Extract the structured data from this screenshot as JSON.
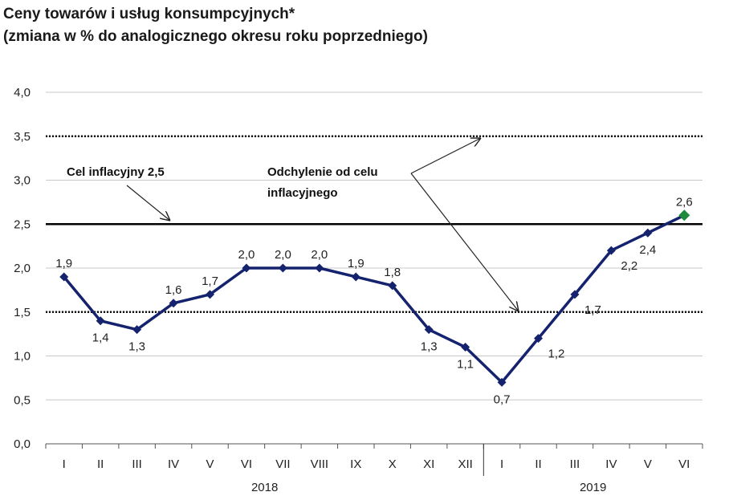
{
  "title": "Ceny towarów i usług konsumpcyjnych*",
  "subtitle": "(zmiana w % do analogicznego okresu roku poprzedniego)",
  "chart_data": {
    "type": "line",
    "x": [
      "I",
      "II",
      "III",
      "IV",
      "V",
      "VI",
      "VII",
      "VIII",
      "IX",
      "X",
      "XI",
      "XII",
      "I",
      "II",
      "III",
      "IV",
      "V",
      "VI"
    ],
    "years": [
      {
        "label": "2018",
        "months": 12
      },
      {
        "label": "2019",
        "months": 6
      }
    ],
    "series": [
      {
        "values": [
          1.9,
          1.4,
          1.3,
          1.6,
          1.7,
          2.0,
          2.0,
          2.0,
          1.9,
          1.8,
          1.3,
          1.1,
          0.7,
          1.2,
          1.7,
          2.2,
          2.4,
          2.6
        ],
        "labels": [
          "1,9",
          "1,4",
          "1,3",
          "1,6",
          "1,7",
          "2,0",
          "2,0",
          "2,0",
          "1,9",
          "1,8",
          "1,3",
          "1,1",
          "0,7",
          "1,2",
          "1,7",
          "2,2",
          "2,4",
          "2,6"
        ],
        "label_pos": [
          "above",
          "below",
          "below",
          "above",
          "above",
          "above",
          "above",
          "above",
          "above",
          "above",
          "below",
          "below",
          "below",
          "right",
          "right",
          "right",
          "below",
          "above"
        ],
        "color": "#15226e",
        "last_point_color": "#1f8a3c"
      }
    ],
    "ylim": [
      0,
      4.0
    ],
    "yticks": [
      "0,0",
      "0,5",
      "1,0",
      "1,5",
      "2,0",
      "2,5",
      "3,0",
      "3,5",
      "4,0"
    ],
    "grid": true,
    "target": {
      "value": 2.5,
      "label": "Cel inflacyjny 2,5"
    },
    "tolerance_band": {
      "lower": 1.5,
      "upper": 3.5,
      "label_line1": "Odchylenie od celu",
      "label_line2": "inflacyjnego"
    }
  }
}
